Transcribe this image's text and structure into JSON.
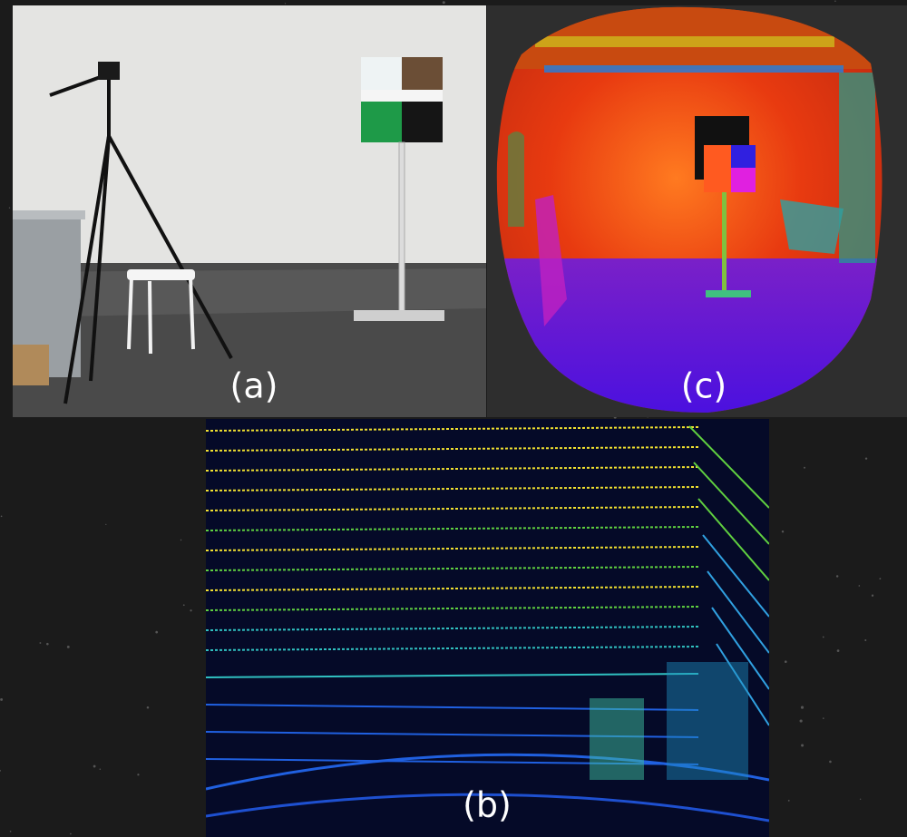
{
  "panels": [
    {
      "label": "(a)"
    },
    {
      "label": "(c)"
    },
    {
      "label": "(b)"
    }
  ]
}
